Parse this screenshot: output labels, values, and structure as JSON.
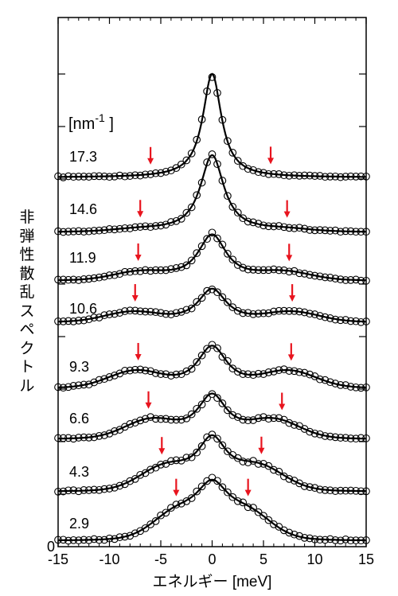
{
  "chart_data": {
    "type": "scatter",
    "xlabel": "エネルギー [meV]",
    "ylabel": "非弾性散乱スペクトル",
    "x_range": [
      -15,
      15
    ],
    "x_ticks": [
      "-15",
      "-10",
      "-5",
      "0",
      "5",
      "10",
      "15"
    ],
    "y_tick_label": "0",
    "unit_label": "[nm⁻¹]",
    "arrow_color": "#e8141e",
    "series": [
      {
        "name": "17.3",
        "peak_height": 130,
        "hwhm": 1.1,
        "side_energy": 6.0,
        "side_amp": 0,
        "side_width": 2.5,
        "arrows_x": [
          -6.0,
          5.7
        ]
      },
      {
        "name": "14.6",
        "peak_height": 97,
        "hwhm": 1.4,
        "side_energy": 7.0,
        "side_amp": 3,
        "side_width": 2.5,
        "arrows_x": [
          -7.0,
          7.3
        ]
      },
      {
        "name": "11.9",
        "peak_height": 58,
        "hwhm": 1.7,
        "side_energy": 7.0,
        "side_amp": 10,
        "side_width": 2.6,
        "arrows_x": [
          -7.2,
          7.5
        ]
      },
      {
        "name": "10.6",
        "peak_height": 42,
        "hwhm": 1.7,
        "side_energy": 7.8,
        "side_amp": 12,
        "side_width": 2.6,
        "arrows_x": [
          -7.5,
          7.8
        ]
      },
      {
        "name": "9.3",
        "peak_height": 53,
        "hwhm": 1.8,
        "side_energy": 7.5,
        "side_amp": 20,
        "side_width": 2.6,
        "arrows_x": [
          -7.2,
          7.7
        ]
      },
      {
        "name": "6.6",
        "peak_height": 55,
        "hwhm": 1.8,
        "side_energy": 6.0,
        "side_amp": 22,
        "side_width": 2.5,
        "arrows_x": [
          -6.2,
          6.8
        ]
      },
      {
        "name": "4.3",
        "peak_height": 60,
        "hwhm": 1.8,
        "side_energy": 4.5,
        "side_amp": 28,
        "side_width": 2.5,
        "arrows_x": [
          -4.9,
          4.8
        ]
      },
      {
        "name": "2.9",
        "peak_height": 57,
        "hwhm": 2.0,
        "side_energy": 3.4,
        "side_amp": 30,
        "side_width": 2.3,
        "arrows_x": [
          -3.5,
          3.5
        ]
      }
    ]
  }
}
